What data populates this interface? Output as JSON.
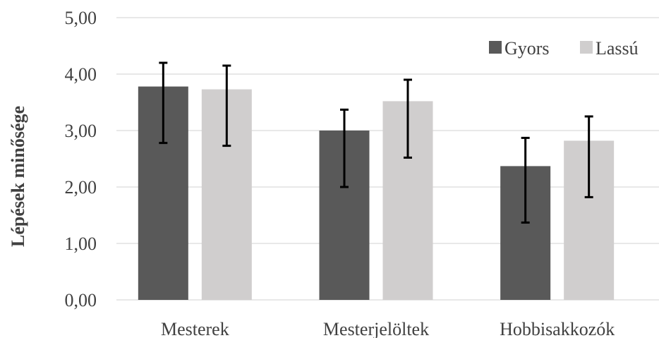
{
  "chart_data": {
    "type": "bar",
    "title": "",
    "xlabel": "",
    "ylabel": "Lépések minősége",
    "ylim": [
      0,
      5
    ],
    "yticks": [
      "0,00",
      "1,00",
      "2,00",
      "3,00",
      "4,00",
      "5,00"
    ],
    "categories": [
      "Mesterek",
      "Mesterjelöltek",
      "Hobbisakkozók"
    ],
    "series": [
      {
        "name": "Gyors",
        "color": "#595959",
        "values": [
          3.78,
          3.0,
          2.37
        ],
        "error_low": [
          2.78,
          2.0,
          1.37
        ],
        "error_high": [
          4.2,
          3.37,
          2.87
        ]
      },
      {
        "name": "Lassú",
        "color": "#d0cece",
        "values": [
          3.73,
          3.52,
          2.82
        ],
        "error_low": [
          2.73,
          2.52,
          1.82
        ],
        "error_high": [
          4.15,
          3.9,
          3.25
        ]
      }
    ],
    "grid": true,
    "legend": "top-right"
  }
}
